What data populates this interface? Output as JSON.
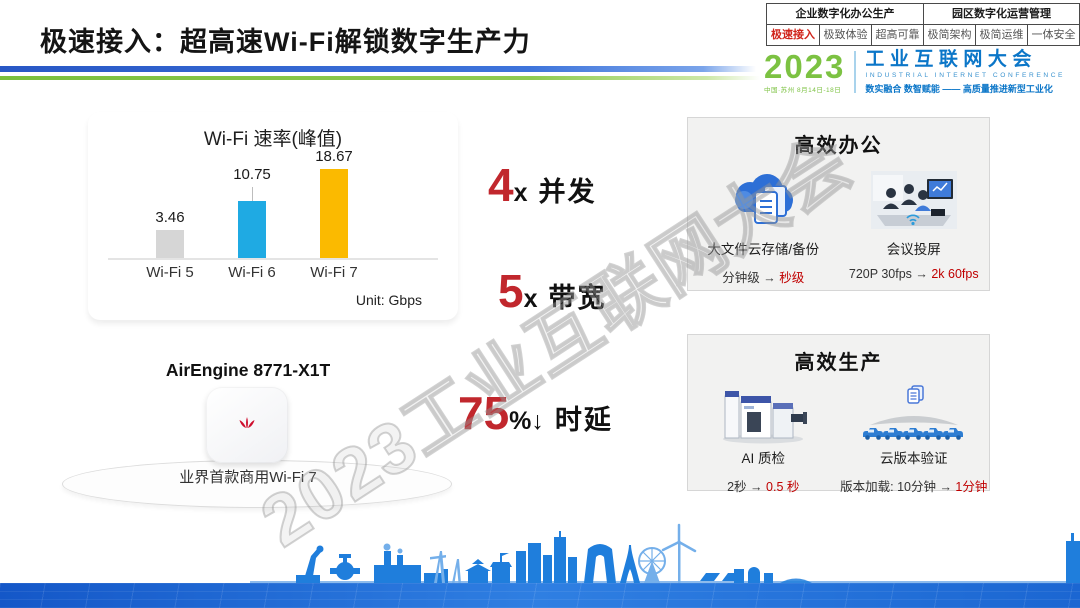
{
  "slide": {
    "title": "极速接入：超高速Wi-Fi解锁数字生产力"
  },
  "nav": {
    "group_labels": [
      "企业数字化办公生产",
      "园区数字化运营管理"
    ],
    "tabs": [
      {
        "label": "极速接入",
        "active": true
      },
      {
        "label": "极致体验",
        "active": false
      },
      {
        "label": "超高可靠",
        "active": false
      },
      {
        "label": "极简架构",
        "active": false
      },
      {
        "label": "极简运维",
        "active": false
      },
      {
        "label": "一体安全",
        "active": false
      }
    ]
  },
  "logo": {
    "year": "2023",
    "venue": "中国·苏州 8月14日-18日",
    "name_cn": "工业互联网大会",
    "name_en": "INDUSTRIAL INTERNET CONFERENCE",
    "slogan": "数实融合  数智赋能 —— 高质量推进新型工业化"
  },
  "chart_data": {
    "type": "bar",
    "title": "Wi-Fi 速率(峰值)",
    "categories": [
      "Wi-Fi 5",
      "Wi-Fi 6",
      "Wi-Fi 7"
    ],
    "values": [
      3.46,
      10.75,
      18.67
    ],
    "value_labels": [
      "3.46",
      "10.75",
      "18.67"
    ],
    "colors": [
      "#D6D6D6",
      "#1FAAE3",
      "#FBBA00"
    ],
    "unit_label": "Unit: Gbps",
    "xlabel": "",
    "ylabel": "",
    "ylim": [
      0,
      20
    ],
    "grid": false,
    "legend": "none"
  },
  "product": {
    "name": "AirEngine 8771-X1T",
    "caption": "业界首款商用Wi-Fi 7"
  },
  "kpis": [
    {
      "value": "4",
      "suffix": "x",
      "label": "并发"
    },
    {
      "value": "5",
      "suffix": "x",
      "label": "带宽"
    },
    {
      "value": "75",
      "suffix": "%↓",
      "label": "时延"
    }
  ],
  "watermark": "2023工业互联网大会",
  "panels": [
    {
      "title": "高效办公",
      "items": [
        {
          "icon": "cloud-docs-icon",
          "label": "大文件云存储/备份",
          "metric_before": "分钟级 → ",
          "metric_after": "秒级"
        },
        {
          "icon": "meeting-screen-icon",
          "label": "会议投屏",
          "metric_before": "720P 30fps → ",
          "metric_after": "2k 60fps"
        }
      ]
    },
    {
      "title": "高效生产",
      "items": [
        {
          "icon": "ai-inspection-machine-icon",
          "label": "AI 质检",
          "metric_before": "2秒 → ",
          "metric_after": "0.5 秒"
        },
        {
          "icon": "cloud-version-cars-icon",
          "label": "云版本验证",
          "metric_before": "版本加载: 10分钟 → ",
          "metric_after": "1分钟"
        }
      ]
    }
  ],
  "colors": {
    "accent_red": "#C1272D",
    "tab_red": "#D0241B",
    "divider_blue": "#2E62CC",
    "divider_green": "#86C440",
    "bar_gray": "#D6D6D6",
    "bar_blue": "#1FAAE3",
    "bar_gold": "#FBBA00",
    "logo_green": "#7CC242",
    "logo_blue": "#0B76C8",
    "panel_bg": "#F2F2F1",
    "skyline_blue": "#1F7EDC"
  }
}
